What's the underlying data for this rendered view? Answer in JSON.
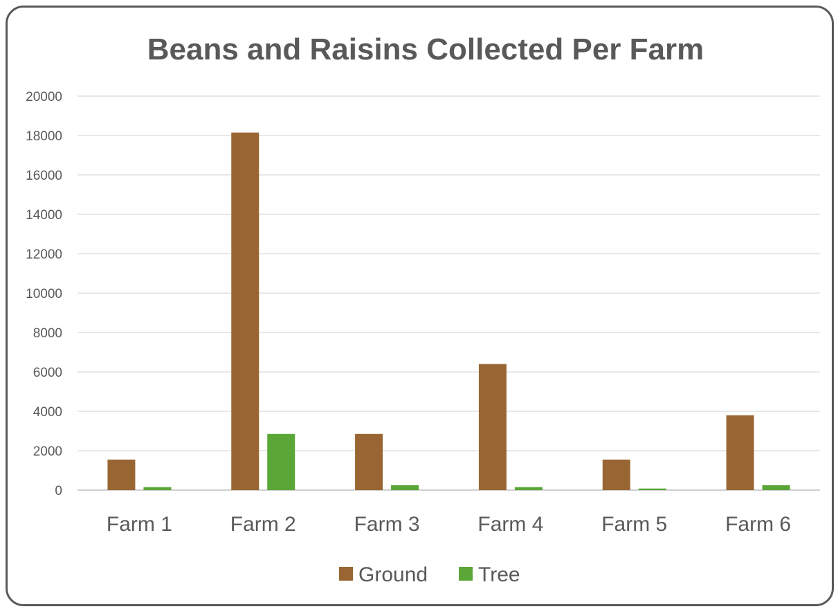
{
  "chart_data": {
    "type": "bar",
    "title": "Beans and Raisins Collected Per Farm",
    "xlabel": "",
    "ylabel": "",
    "categories": [
      "Farm 1",
      "Farm 2",
      "Farm 3",
      "Farm 4",
      "Farm 5",
      "Farm 6"
    ],
    "series": [
      {
        "name": "Ground",
        "color": "#996633",
        "values": [
          1550,
          18150,
          2850,
          6400,
          1550,
          3800
        ]
      },
      {
        "name": "Tree",
        "color": "#5aa637",
        "values": [
          150,
          2850,
          250,
          150,
          80,
          250
        ]
      }
    ],
    "ylim": [
      0,
      20000
    ],
    "yticks": [
      "0",
      "2000",
      "4000",
      "6000",
      "8000",
      "10000",
      "12000",
      "14000",
      "16000",
      "18000",
      "20000"
    ],
    "grid": true,
    "legend_position": "bottom",
    "gridline_color": "#d9d9d9",
    "axis_line_color": "#bfbfbf",
    "text_color": "#595959"
  }
}
